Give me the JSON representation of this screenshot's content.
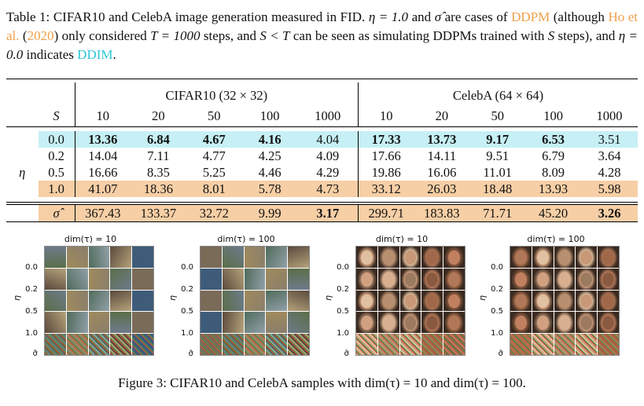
{
  "table_caption": {
    "p1": "Table 1: CIFAR10 and CelebA image generation measured in FID. ",
    "eta_eq": "η = 1.0",
    "p2": " and ",
    "sigma_hat": "σ̂",
    "p3": " are cases of",
    "ddpm": "DDPM",
    "p4": " (although ",
    "ho": "Ho et al.",
    "p5": " (",
    "year": "2020",
    "p6": ") only considered ",
    "t_eq": "T = 1000",
    "p7": " steps, and ",
    "s_lt": "S < T",
    "p8": " can be seen as simulating DDPMs trained with ",
    "s_var": "S",
    "p9": " steps), and ",
    "eta0": "η = 0.0",
    "p10": " indicates ",
    "ddim": "DDIM",
    "p11": "."
  },
  "table": {
    "dataset1": "CIFAR10 (32 × 32)",
    "dataset2": "CelebA (64 × 64)",
    "s_label": "S",
    "eta_label": "η",
    "steps": [
      "10",
      "20",
      "50",
      "100",
      "1000"
    ],
    "rows": [
      {
        "eta": "0.0",
        "cifar": [
          "13.36",
          "6.84",
          "4.67",
          "4.16",
          "4.04"
        ],
        "celeba": [
          "17.33",
          "13.73",
          "9.17",
          "6.53",
          "3.51"
        ]
      },
      {
        "eta": "0.2",
        "cifar": [
          "14.04",
          "7.11",
          "4.77",
          "4.25",
          "4.09"
        ],
        "celeba": [
          "17.66",
          "14.11",
          "9.51",
          "6.79",
          "3.64"
        ]
      },
      {
        "eta": "0.5",
        "cifar": [
          "16.66",
          "8.35",
          "5.25",
          "4.46",
          "4.29"
        ],
        "celeba": [
          "19.86",
          "16.06",
          "11.01",
          "8.09",
          "4.28"
        ]
      },
      {
        "eta": "1.0",
        "cifar": [
          "41.07",
          "18.36",
          "8.01",
          "5.78",
          "4.73"
        ],
        "celeba": [
          "33.12",
          "26.03",
          "18.48",
          "13.93",
          "5.98"
        ]
      }
    ],
    "sigma_row": {
      "label": "σ̂",
      "cifar": [
        "367.43",
        "133.37",
        "32.72",
        "9.99",
        "3.17"
      ],
      "celeba": [
        "299.71",
        "183.83",
        "71.71",
        "45.20",
        "3.26"
      ]
    }
  },
  "figure": {
    "grids": [
      {
        "title": "dim(τ) = 10"
      },
      {
        "title": "dim(τ) = 100"
      },
      {
        "title": "dim(τ) = 10"
      },
      {
        "title": "dim(τ) = 100"
      }
    ],
    "row_labels": [
      "0.0",
      "0.2",
      "0.5",
      "1.0",
      "σ̂"
    ],
    "axis_label": "η",
    "caption": "Figure 3: CIFAR10 and CelebA samples with dim(τ) = 10 and dim(τ) = 100."
  },
  "colors": {
    "cyan_row": "#c6f0f5",
    "orange_row": "#f7cfa6",
    "link_orange": "#f0a04a",
    "link_cyan": "#2cc6d6"
  }
}
